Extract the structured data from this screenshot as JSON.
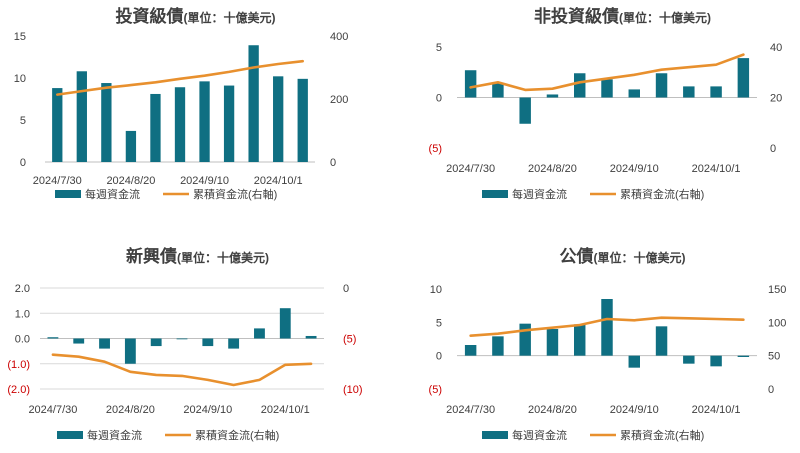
{
  "legend": {
    "bar_label": "每週資金流",
    "line_label": "累積資金流(右軸)"
  },
  "colors": {
    "bar": "#0f6f82",
    "line": "#e8902e",
    "neg_tick": "#cc0000",
    "tick": "#404040",
    "grid": "#d9d9d9",
    "title": "#404040"
  },
  "chart_data": [
    {
      "id": "ig",
      "type": "bar+line",
      "title": "投資級債",
      "unit": "(單位：十億美元)",
      "x": [
        "2024/7/30",
        "2024/8/6",
        "2024/8/13",
        "2024/8/20",
        "2024/8/27",
        "2024/9/3",
        "2024/9/10",
        "2024/9/17",
        "2024/9/24",
        "2024/10/1",
        "2024/10/8"
      ],
      "xticks": [
        "2024/7/30",
        "2024/8/20",
        "2024/9/10",
        "2024/10/1"
      ],
      "bars": [
        8.8,
        10.8,
        9.4,
        3.7,
        8.1,
        8.9,
        9.6,
        9.1,
        13.9,
        10.2,
        9.9
      ],
      "line": [
        214,
        225,
        236,
        244,
        253,
        264,
        274,
        286,
        300,
        311,
        320
      ],
      "ylim_left": [
        0,
        15
      ],
      "yticks_left": [
        0,
        5,
        10,
        15
      ],
      "ylim_right": [
        0,
        400
      ],
      "yticks_right": [
        0,
        200,
        400
      ],
      "left_labels": [
        "0",
        "5",
        "10",
        "15"
      ],
      "right_labels": [
        "0",
        "200",
        "400"
      ],
      "grid": "none"
    },
    {
      "id": "hy",
      "type": "bar+line",
      "title": "非投資級債",
      "unit": "(單位：十億美元)",
      "x": [
        "2024/7/30",
        "2024/8/6",
        "2024/8/13",
        "2024/8/20",
        "2024/8/27",
        "2024/9/3",
        "2024/9/10",
        "2024/9/17",
        "2024/9/24",
        "2024/10/1",
        "2024/10/8"
      ],
      "xticks": [
        "2024/7/30",
        "2024/8/20",
        "2024/9/10",
        "2024/10/1"
      ],
      "bars": [
        2.7,
        1.4,
        -2.6,
        0.3,
        2.4,
        1.8,
        0.8,
        2.4,
        1.1,
        1.1,
        3.9
      ],
      "line": [
        24,
        26,
        23,
        23.5,
        26,
        27.5,
        29,
        31,
        32,
        33,
        37
      ],
      "ylim_left": [
        -5,
        5
      ],
      "yticks_left": [
        -5,
        0,
        5
      ],
      "ylim_right": [
        0,
        40
      ],
      "yticks_right": [
        0,
        20,
        40
      ],
      "left_labels": [
        "(5)",
        "0",
        "5"
      ],
      "right_labels": [
        "0",
        "20",
        "40"
      ],
      "grid": "none"
    },
    {
      "id": "em",
      "type": "bar+line",
      "title": "新興債",
      "unit": "(單位：十億美元)",
      "x": [
        "2024/7/30",
        "2024/8/6",
        "2024/8/13",
        "2024/8/20",
        "2024/8/27",
        "2024/9/3",
        "2024/9/10",
        "2024/9/17",
        "2024/9/24",
        "2024/10/1",
        "2024/10/8"
      ],
      "xticks": [
        "2024/7/30",
        "2024/8/20",
        "2024/9/10",
        "2024/10/1"
      ],
      "bars": [
        0.05,
        -0.2,
        -0.4,
        -1.0,
        -0.3,
        0.0,
        -0.3,
        -0.4,
        0.4,
        1.2,
        0.1
      ],
      "line": [
        -6.6,
        -6.8,
        -7.3,
        -8.3,
        -8.6,
        -8.7,
        -9.1,
        -9.6,
        -9.1,
        -7.6,
        -7.5
      ],
      "ylim_left": [
        -2,
        2
      ],
      "yticks_left": [
        -2,
        -1,
        0,
        1,
        2
      ],
      "ylim_right": [
        -10,
        0
      ],
      "yticks_right": [
        -10,
        -5,
        0
      ],
      "left_labels": [
        "(2.0)",
        "(1.0)",
        "0.0",
        "1.0",
        "2.0"
      ],
      "right_labels": [
        "(10)",
        "(5)",
        "0"
      ],
      "grid": "horizontal"
    },
    {
      "id": "muni",
      "type": "bar+line",
      "title": "公債",
      "unit": "(單位：十億美元)",
      "x": [
        "2024/7/30",
        "2024/8/6",
        "2024/8/13",
        "2024/8/20",
        "2024/8/27",
        "2024/9/3",
        "2024/9/10",
        "2024/9/17",
        "2024/9/24",
        "2024/10/1",
        "2024/10/8"
      ],
      "xticks": [
        "2024/7/30",
        "2024/8/20",
        "2024/9/10",
        "2024/10/1"
      ],
      "bars": [
        1.6,
        2.9,
        4.8,
        4.0,
        4.7,
        8.5,
        -1.8,
        4.4,
        -1.2,
        -1.6,
        -0.2
      ],
      "line": [
        80,
        83,
        88,
        92,
        96,
        105,
        103,
        107,
        106,
        105,
        104
      ],
      "ylim_left": [
        -5,
        10
      ],
      "yticks_left": [
        -5,
        0,
        5,
        10
      ],
      "ylim_right": [
        0,
        150
      ],
      "yticks_right": [
        0,
        50,
        100,
        150
      ],
      "left_labels": [
        "(5)",
        "0",
        "5",
        "10"
      ],
      "right_labels": [
        "0",
        "50",
        "100",
        "150"
      ],
      "grid": "none"
    }
  ]
}
